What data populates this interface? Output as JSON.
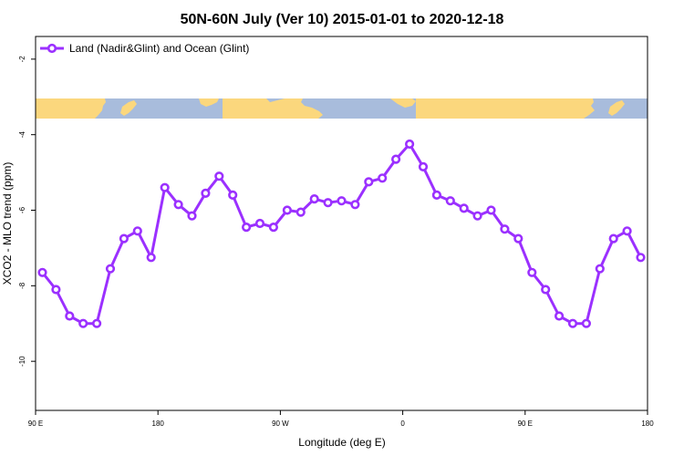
{
  "chart_data": {
    "type": "line",
    "title": "50N-60N July (Ver 10)   2015-01-01 to 2020-12-18",
    "xlabel": "Longitude (deg E)",
    "ylabel": "XCO2 - MLO trend (ppm)",
    "x_ticks": [
      {
        "value": 90,
        "label": "90 E"
      },
      {
        "value": 180,
        "label": "180"
      },
      {
        "value": 270,
        "label": "90 W"
      },
      {
        "value": 360,
        "label": "0"
      },
      {
        "value": 450,
        "label": "90 E"
      },
      {
        "value": 540,
        "label": "180"
      }
    ],
    "y_ticks": [
      -2,
      -4,
      -6,
      -8,
      -10
    ],
    "xlim": [
      90,
      540
    ],
    "ylim": [
      -11.3,
      -1.4
    ],
    "grid": false,
    "legend_position": "top-left",
    "series": [
      {
        "name": "Land (Nadir&Glint) and Ocean (Glint)",
        "color": "#9b30ff",
        "x": [
          95,
          105,
          115,
          125,
          135,
          145,
          155,
          165,
          175,
          185,
          195,
          205,
          215,
          225,
          235,
          245,
          255,
          265,
          275,
          285,
          295,
          305,
          315,
          325,
          335,
          345,
          355,
          365,
          375,
          385,
          395,
          405,
          415,
          425,
          435,
          445,
          455,
          465,
          475,
          485,
          495,
          505,
          515,
          525,
          535
        ],
        "y": [
          -7.65,
          -8.1,
          -8.8,
          -9.0,
          -9.0,
          -7.55,
          -6.75,
          -6.55,
          -7.25,
          -5.4,
          -5.85,
          -6.15,
          -5.55,
          -5.1,
          -5.6,
          -6.45,
          -6.35,
          -6.45,
          -6.0,
          -6.05,
          -5.7,
          -5.8,
          -5.75,
          -5.85,
          -5.25,
          -5.15,
          -4.65,
          -4.25,
          -4.85,
          -5.6,
          -5.75,
          -5.95,
          -6.15,
          -6.0,
          -6.5,
          -6.75,
          -7.65,
          -8.1,
          -8.8,
          -9.0,
          -9.0,
          -7.55,
          -6.75,
          -6.55,
          -7.25
        ]
      }
    ],
    "map_strip": {
      "ocean_color": "#a8bcdc",
      "land_color": "#fbd77d"
    }
  }
}
